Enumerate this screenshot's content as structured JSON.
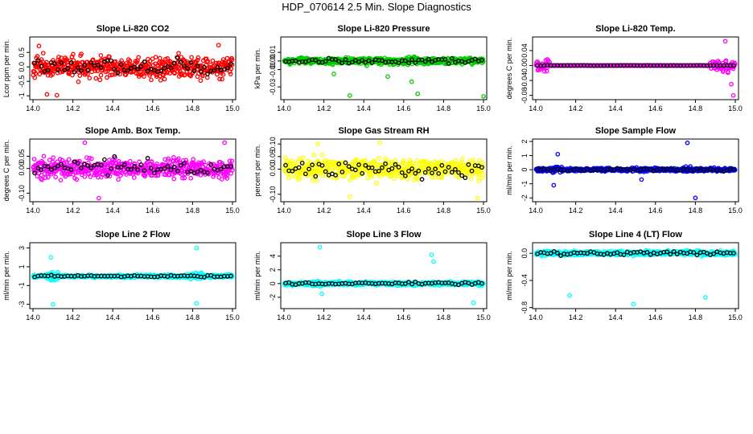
{
  "title": "HDP_070614  2.5 Min. Slope Diagnostics",
  "colors": {
    "red": "#ff0000",
    "green": "#00cc00",
    "magenta": "#ff00ff",
    "yellow": "#ffff00",
    "blue": "#0000ff",
    "cyan": "#00ffff",
    "black": "#000000"
  },
  "chart_data": [
    {
      "type": "scatter",
      "title": "Slope Li-820 CO2",
      "ylabel": "Lcor ppm per min.",
      "color": "#ff0000",
      "xlim": [
        14.0,
        15.0
      ],
      "ylim": [
        -1.05,
        0.95
      ],
      "xticks": [
        "14.0",
        "14.2",
        "14.4",
        "14.6",
        "14.8",
        "15.0"
      ],
      "yticks": [
        {
          "v": -1,
          "l": "-1"
        },
        {
          "v": -0.5,
          "l": "-0.5"
        },
        {
          "v": 0,
          "l": "0.0"
        },
        {
          "v": 0.5,
          "l": "0.5"
        }
      ],
      "spread": 0.35,
      "clip": 0.95,
      "outliers": [
        [
          14.03,
          0.72
        ],
        [
          14.12,
          -0.98
        ],
        [
          14.93,
          0.75
        ],
        [
          14.07,
          -0.95
        ]
      ]
    },
    {
      "type": "scatter",
      "title": "Slope Li-820 Pressure",
      "ylabel": "kPa per min.",
      "color": "#00cc00",
      "xlim": [
        14.0,
        15.0
      ],
      "ylim": [
        -0.042,
        0.025
      ],
      "xticks": [
        "14.0",
        "14.2",
        "14.4",
        "14.6",
        "14.8",
        "15.0"
      ],
      "yticks": [
        {
          "v": -0.03,
          "l": "-0.03"
        },
        {
          "v": -0.01,
          "l": "-0.01"
        },
        {
          "v": 0,
          "l": "0.00"
        },
        {
          "v": 0.01,
          "l": "0.01"
        }
      ],
      "spread": 0.004,
      "clip": 0.02,
      "outliers": [
        [
          14.33,
          -0.04
        ],
        [
          14.67,
          -0.038
        ],
        [
          15.0,
          -0.041
        ],
        [
          14.64,
          -0.024
        ],
        [
          14.52,
          -0.018
        ],
        [
          14.25,
          -0.015
        ]
      ]
    },
    {
      "type": "scatter",
      "title": "Slope Li-820 Temp.",
      "ylabel": "degrees C per min.",
      "color": "#ff00ff",
      "xlim": [
        14.0,
        15.0
      ],
      "ylim": [
        -0.085,
        0.07
      ],
      "xticks": [
        "14.0",
        "14.2",
        "14.4",
        "14.6",
        "14.8",
        "15.0"
      ],
      "yticks": [
        {
          "v": -0.08,
          "l": "-0.08"
        },
        {
          "v": -0.04,
          "l": "-0.04"
        },
        {
          "v": 0,
          "l": "0.00"
        },
        {
          "v": 0.04,
          "l": "0.04"
        }
      ],
      "spread": 0.0005,
      "clip": 0.06,
      "edgeNoise": 0.015,
      "outliers": [
        [
          14.95,
          0.065
        ],
        [
          14.99,
          -0.08
        ],
        [
          14.98,
          -0.05
        ]
      ]
    },
    {
      "type": "scatter",
      "title": "Slope Amb. Box Temp.",
      "ylabel": "degrees C per min.",
      "color": "#ff00ff",
      "xlim": [
        14.0,
        15.0
      ],
      "ylim": [
        -0.125,
        0.11
      ],
      "xticks": [
        "14.0",
        "14.2",
        "14.4",
        "14.6",
        "14.8",
        "15.0"
      ],
      "yticks": [
        {
          "v": -0.1,
          "l": "-0.10"
        },
        {
          "v": 0,
          "l": "0.00"
        },
        {
          "v": 0.05,
          "l": "0.05"
        }
      ],
      "spread": 0.04,
      "clip": 0.105,
      "outliers": [
        [
          14.26,
          0.105
        ],
        [
          14.96,
          0.105
        ],
        [
          14.33,
          -0.12
        ]
      ]
    },
    {
      "type": "scatter",
      "title": "Slope Gas Stream RH",
      "ylabel": "percent per min.",
      "color": "#ffff00",
      "xlim": [
        14.0,
        15.0
      ],
      "ylim": [
        -0.12,
        0.11
      ],
      "xticks": [
        "14.0",
        "14.2",
        "14.4",
        "14.6",
        "14.8",
        "15.0"
      ],
      "yticks": [
        {
          "v": -0.1,
          "l": "-0.10"
        },
        {
          "v": 0,
          "l": "0.00"
        },
        {
          "v": 0.05,
          "l": "0.05"
        },
        {
          "v": 0.1,
          "l": "0.10"
        }
      ],
      "spread": 0.04,
      "clip": 0.105,
      "outliers": [
        [
          14.17,
          0.1
        ],
        [
          14.48,
          0.105
        ],
        [
          14.33,
          -0.11
        ],
        [
          14.97,
          -0.115
        ]
      ]
    },
    {
      "type": "scatter",
      "title": "Slope Sample Flow",
      "ylabel": "ml/min per min.",
      "color": "#0000ff",
      "xlim": [
        14.0,
        15.0
      ],
      "ylim": [
        -2.1,
        2.0
      ],
      "xticks": [
        "14.0",
        "14.2",
        "14.4",
        "14.6",
        "14.8",
        "15.0"
      ],
      "yticks": [
        {
          "v": -2,
          "l": "-2"
        },
        {
          "v": -1,
          "l": "-1"
        },
        {
          "v": 0,
          "l": "0"
        },
        {
          "v": 1,
          "l": "1"
        },
        {
          "v": 2,
          "l": "2"
        }
      ],
      "spread": 0.12,
      "clip": 1.9,
      "bursts": [
        [
          14.1,
          0.45
        ],
        [
          14.2,
          0.2
        ],
        [
          14.76,
          0.5
        ],
        [
          14.52,
          0.35
        ]
      ],
      "outliers": [
        [
          14.11,
          1.1
        ],
        [
          14.76,
          1.9
        ],
        [
          14.8,
          -2.0
        ],
        [
          14.09,
          -1.1
        ],
        [
          14.53,
          -0.7
        ]
      ]
    },
    {
      "type": "scatter",
      "title": "Slope Line 2 Flow",
      "ylabel": "ml/min per min.",
      "color": "#00ffff",
      "xlim": [
        14.0,
        15.0
      ],
      "ylim": [
        -3.2,
        3.3
      ],
      "xticks": [
        "14.0",
        "14.2",
        "14.4",
        "14.6",
        "14.8",
        "15.0"
      ],
      "yticks": [
        {
          "v": -3,
          "l": "-3"
        },
        {
          "v": -1,
          "l": "-1"
        },
        {
          "v": 1,
          "l": "1"
        },
        {
          "v": 3,
          "l": "3"
        }
      ],
      "spread": 0.15,
      "clip": 3.1,
      "bursts": [
        [
          14.1,
          0.9
        ],
        [
          14.82,
          0.7
        ]
      ],
      "outliers": [
        [
          14.1,
          -3.0
        ],
        [
          14.82,
          3.0
        ],
        [
          14.82,
          -2.9
        ],
        [
          14.09,
          2.0
        ]
      ]
    },
    {
      "type": "scatter",
      "title": "Slope Line 3 Flow",
      "ylabel": "ml/min per min.",
      "color": "#00ffff",
      "xlim": [
        14.0,
        15.0
      ],
      "ylim": [
        -3.3,
        5.6
      ],
      "xticks": [
        "14.0",
        "14.2",
        "14.4",
        "14.6",
        "14.8",
        "15.0"
      ],
      "yticks": [
        {
          "v": -2,
          "l": "-2"
        },
        {
          "v": 0,
          "l": "0"
        },
        {
          "v": 2,
          "l": "2"
        },
        {
          "v": 4,
          "l": "4"
        }
      ],
      "spread": 0.25,
      "clip": 5.2,
      "bursts": [
        [
          14.17,
          0.8
        ],
        [
          14.75,
          0.9
        ],
        [
          14.95,
          0.6
        ]
      ],
      "outliers": [
        [
          14.18,
          5.3
        ],
        [
          14.75,
          3.2
        ],
        [
          14.74,
          4.2
        ],
        [
          14.95,
          -2.8
        ],
        [
          14.19,
          -1.5
        ]
      ]
    },
    {
      "type": "scatter",
      "title": "Slope Line 4 (LT) Flow",
      "ylabel": "ml/min per min.",
      "color": "#00ffff",
      "xlim": [
        14.0,
        15.0
      ],
      "ylim": [
        -0.78,
        0.12
      ],
      "xticks": [
        "14.0",
        "14.2",
        "14.4",
        "14.6",
        "14.8",
        "15.0"
      ],
      "yticks": [
        {
          "v": -0.8,
          "l": "-0.8"
        },
        {
          "v": -0.4,
          "l": "-0.4"
        },
        {
          "v": 0,
          "l": "0.0"
        }
      ],
      "spread": 0.035,
      "clip": 0.1,
      "outliers": [
        [
          14.17,
          -0.62
        ],
        [
          14.49,
          -0.75
        ],
        [
          14.85,
          -0.65
        ]
      ]
    }
  ]
}
